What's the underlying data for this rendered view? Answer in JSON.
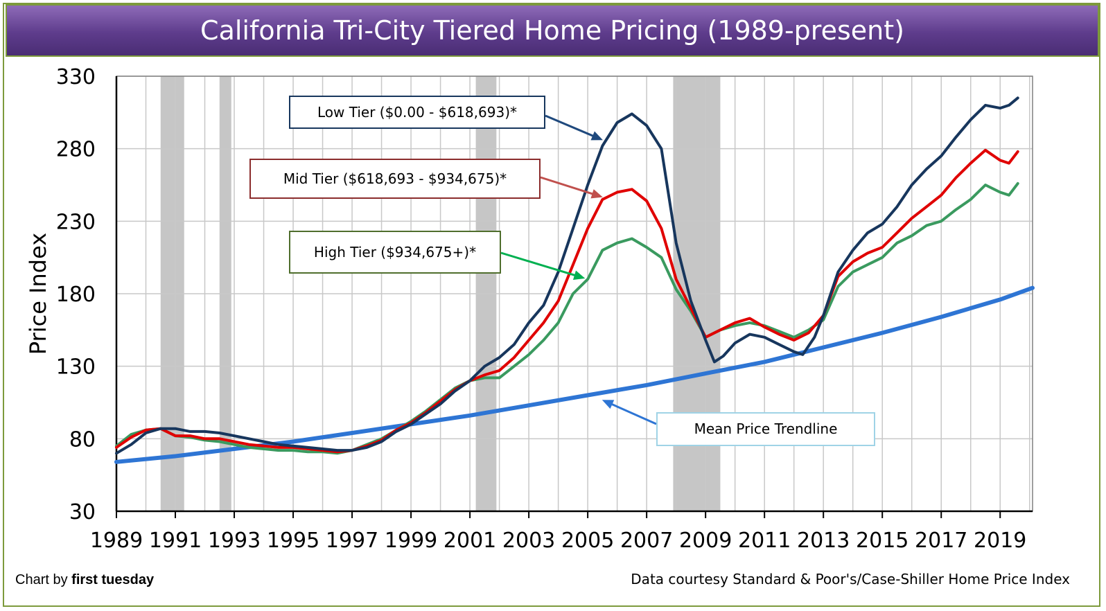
{
  "header": {
    "title": "California Tri-City Tiered Home Pricing (1989-present)"
  },
  "credits": {
    "left_prefix": "Chart by ",
    "left_brand": "first tuesday",
    "right": "Data courtesy Standard & Poor's/Case-Shiller Home Price Index"
  },
  "chart_data": {
    "type": "line",
    "title": "California Tri-City Tiered Home Pricing (1989-present)",
    "xlabel": "",
    "ylabel": "Price Index",
    "xlim": [
      1989,
      2020.1
    ],
    "ylim": [
      30,
      330
    ],
    "yticks": [
      30,
      80,
      130,
      180,
      230,
      280,
      330
    ],
    "xticks": [
      1989,
      1991,
      1993,
      1995,
      1997,
      1999,
      2001,
      2003,
      2005,
      2007,
      2009,
      2011,
      2013,
      2015,
      2017,
      2019
    ],
    "grid": true,
    "recessions": [
      [
        1990.5,
        1991.3
      ],
      [
        1992.5,
        1992.9
      ],
      [
        2001.2,
        2001.9
      ],
      [
        2007.9,
        2009.5
      ]
    ],
    "colors": {
      "low": "#17365d",
      "mid": "#e00000",
      "high": "#3a9a5f",
      "trend": "#2e75d4",
      "recession": "#c6c6c6",
      "grid": "#c8c8c8"
    },
    "series": [
      {
        "name": "Low Tier ($0.00 - $618,693)*",
        "key": "low",
        "points": [
          [
            1989,
            70
          ],
          [
            1989.5,
            76
          ],
          [
            1990,
            84
          ],
          [
            1990.5,
            87
          ],
          [
            1991,
            87
          ],
          [
            1991.5,
            85
          ],
          [
            1992,
            85
          ],
          [
            1992.5,
            84
          ],
          [
            1993,
            82
          ],
          [
            1993.5,
            80
          ],
          [
            1994,
            78
          ],
          [
            1994.5,
            76
          ],
          [
            1995,
            75
          ],
          [
            1995.5,
            74
          ],
          [
            1996,
            73
          ],
          [
            1996.5,
            72
          ],
          [
            1997,
            72
          ],
          [
            1997.5,
            74
          ],
          [
            1998,
            78
          ],
          [
            1998.5,
            85
          ],
          [
            1999,
            90
          ],
          [
            1999.5,
            97
          ],
          [
            2000,
            104
          ],
          [
            2000.5,
            113
          ],
          [
            2001,
            120
          ],
          [
            2001.5,
            130
          ],
          [
            2002,
            136
          ],
          [
            2002.5,
            145
          ],
          [
            2003,
            160
          ],
          [
            2003.5,
            172
          ],
          [
            2004,
            195
          ],
          [
            2004.5,
            225
          ],
          [
            2005,
            255
          ],
          [
            2005.5,
            282
          ],
          [
            2006,
            298
          ],
          [
            2006.5,
            304
          ],
          [
            2007,
            296
          ],
          [
            2007.5,
            280
          ],
          [
            2008,
            215
          ],
          [
            2008.5,
            175
          ],
          [
            2009,
            148
          ],
          [
            2009.3,
            133
          ],
          [
            2009.6,
            137
          ],
          [
            2010,
            146
          ],
          [
            2010.5,
            152
          ],
          [
            2011,
            150
          ],
          [
            2011.5,
            145
          ],
          [
            2012,
            140
          ],
          [
            2012.3,
            138
          ],
          [
            2012.7,
            150
          ],
          [
            2013,
            165
          ],
          [
            2013.5,
            195
          ],
          [
            2014,
            210
          ],
          [
            2014.5,
            222
          ],
          [
            2015,
            228
          ],
          [
            2015.5,
            240
          ],
          [
            2016,
            255
          ],
          [
            2016.5,
            266
          ],
          [
            2017,
            275
          ],
          [
            2017.5,
            288
          ],
          [
            2018,
            300
          ],
          [
            2018.5,
            310
          ],
          [
            2019,
            308
          ],
          [
            2019.3,
            310
          ],
          [
            2019.6,
            315
          ]
        ]
      },
      {
        "name": "Mid Tier ($618,693 - $934,675)*",
        "key": "mid",
        "points": [
          [
            1989,
            74
          ],
          [
            1989.5,
            81
          ],
          [
            1990,
            86
          ],
          [
            1990.5,
            87
          ],
          [
            1991,
            82
          ],
          [
            1991.5,
            82
          ],
          [
            1992,
            80
          ],
          [
            1992.5,
            80
          ],
          [
            1993,
            78
          ],
          [
            1993.5,
            76
          ],
          [
            1994,
            75
          ],
          [
            1994.5,
            74
          ],
          [
            1995,
            74
          ],
          [
            1995.5,
            73
          ],
          [
            1996,
            72
          ],
          [
            1996.5,
            71
          ],
          [
            1997,
            72
          ],
          [
            1997.5,
            75
          ],
          [
            1998,
            79
          ],
          [
            1998.5,
            86
          ],
          [
            1999,
            91
          ],
          [
            1999.5,
            98
          ],
          [
            2000,
            106
          ],
          [
            2000.5,
            114
          ],
          [
            2001,
            120
          ],
          [
            2001.5,
            124
          ],
          [
            2002,
            127
          ],
          [
            2002.5,
            136
          ],
          [
            2003,
            148
          ],
          [
            2003.5,
            160
          ],
          [
            2004,
            175
          ],
          [
            2004.5,
            200
          ],
          [
            2005,
            225
          ],
          [
            2005.5,
            245
          ],
          [
            2006,
            250
          ],
          [
            2006.5,
            252
          ],
          [
            2007,
            244
          ],
          [
            2007.5,
            225
          ],
          [
            2008,
            190
          ],
          [
            2008.5,
            170
          ],
          [
            2009,
            150
          ],
          [
            2009.5,
            155
          ],
          [
            2010,
            160
          ],
          [
            2010.5,
            163
          ],
          [
            2011,
            157
          ],
          [
            2011.5,
            152
          ],
          [
            2012,
            148
          ],
          [
            2012.5,
            153
          ],
          [
            2013,
            165
          ],
          [
            2013.5,
            192
          ],
          [
            2014,
            202
          ],
          [
            2014.5,
            208
          ],
          [
            2015,
            212
          ],
          [
            2015.5,
            222
          ],
          [
            2016,
            232
          ],
          [
            2016.5,
            240
          ],
          [
            2017,
            248
          ],
          [
            2017.5,
            260
          ],
          [
            2018,
            270
          ],
          [
            2018.5,
            279
          ],
          [
            2019,
            272
          ],
          [
            2019.3,
            270
          ],
          [
            2019.6,
            278
          ]
        ]
      },
      {
        "name": "High Tier ($934,675+)*",
        "key": "high",
        "points": [
          [
            1989,
            75
          ],
          [
            1989.5,
            83
          ],
          [
            1990,
            86
          ],
          [
            1990.5,
            87
          ],
          [
            1991,
            82
          ],
          [
            1991.5,
            81
          ],
          [
            1992,
            79
          ],
          [
            1992.5,
            78
          ],
          [
            1993,
            76
          ],
          [
            1993.5,
            74
          ],
          [
            1994,
            73
          ],
          [
            1994.5,
            72
          ],
          [
            1995,
            72
          ],
          [
            1995.5,
            71
          ],
          [
            1996,
            71
          ],
          [
            1996.5,
            70
          ],
          [
            1997,
            72
          ],
          [
            1997.5,
            76
          ],
          [
            1998,
            80
          ],
          [
            1998.5,
            86
          ],
          [
            1999,
            92
          ],
          [
            1999.5,
            99
          ],
          [
            2000,
            107
          ],
          [
            2000.5,
            115
          ],
          [
            2001,
            120
          ],
          [
            2001.5,
            122
          ],
          [
            2002,
            122
          ],
          [
            2002.5,
            130
          ],
          [
            2003,
            138
          ],
          [
            2003.5,
            148
          ],
          [
            2004,
            160
          ],
          [
            2004.5,
            180
          ],
          [
            2005,
            190
          ],
          [
            2005.5,
            210
          ],
          [
            2006,
            215
          ],
          [
            2006.5,
            218
          ],
          [
            2007,
            212
          ],
          [
            2007.5,
            205
          ],
          [
            2008,
            183
          ],
          [
            2008.5,
            168
          ],
          [
            2009,
            150
          ],
          [
            2009.5,
            155
          ],
          [
            2010,
            158
          ],
          [
            2010.5,
            160
          ],
          [
            2011,
            158
          ],
          [
            2011.5,
            154
          ],
          [
            2012,
            150
          ],
          [
            2012.5,
            155
          ],
          [
            2013,
            162
          ],
          [
            2013.5,
            185
          ],
          [
            2014,
            195
          ],
          [
            2014.5,
            200
          ],
          [
            2015,
            205
          ],
          [
            2015.5,
            215
          ],
          [
            2016,
            220
          ],
          [
            2016.5,
            227
          ],
          [
            2017,
            230
          ],
          [
            2017.5,
            238
          ],
          [
            2018,
            245
          ],
          [
            2018.5,
            255
          ],
          [
            2019,
            250
          ],
          [
            2019.3,
            248
          ],
          [
            2019.6,
            256
          ]
        ]
      },
      {
        "name": "Mean Price Trendline",
        "key": "trend",
        "points": [
          [
            1989,
            64
          ],
          [
            1991,
            68
          ],
          [
            1993,
            73
          ],
          [
            1995,
            78
          ],
          [
            1997,
            84
          ],
          [
            1999,
            90
          ],
          [
            2001,
            96
          ],
          [
            2003,
            103
          ],
          [
            2005,
            110
          ],
          [
            2007,
            117
          ],
          [
            2009,
            125
          ],
          [
            2011,
            133
          ],
          [
            2013,
            143
          ],
          [
            2015,
            153
          ],
          [
            2017,
            164
          ],
          [
            2019,
            176
          ],
          [
            2020.1,
            184
          ]
        ]
      }
    ],
    "callouts": [
      {
        "text": "Low Tier ($0.00 - $618,693)*",
        "series": "low"
      },
      {
        "text": "Mid Tier ($618,693 - $934,675)*",
        "series": "mid"
      },
      {
        "text": "High Tier ($934,675+)*",
        "series": "high"
      },
      {
        "text": "Mean Price Trendline",
        "series": "trend"
      }
    ]
  }
}
